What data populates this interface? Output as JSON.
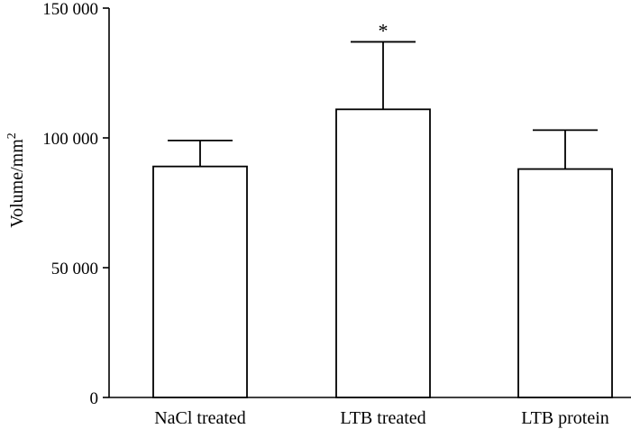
{
  "chart_data": {
    "type": "bar",
    "categories": [
      "NaCl treated",
      "LTB treated",
      "LTB protein"
    ],
    "values": [
      89000,
      111000,
      88000
    ],
    "error_upper": [
      99000,
      137000,
      103000
    ],
    "annotations": [
      "",
      "*",
      ""
    ],
    "ylabel": "Volume/mm",
    "ylabel_superscript": "2",
    "ylim": [
      0,
      150000
    ],
    "yticks": [
      0,
      50000,
      100000,
      150000
    ],
    "ytick_labels": [
      "0",
      "50 000",
      "100 000",
      "150 000"
    ],
    "grid": false
  }
}
